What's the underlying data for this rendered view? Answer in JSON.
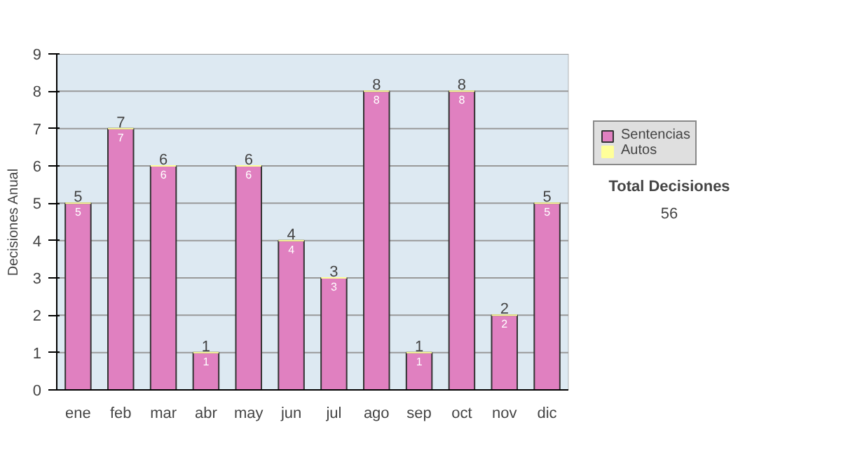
{
  "chart_data": {
    "type": "bar",
    "stacked": true,
    "ylabel": "Decisiones Anual",
    "categories": [
      "ene",
      "feb",
      "mar",
      "abr",
      "may",
      "jun",
      "jul",
      "ago",
      "sep",
      "oct",
      "nov",
      "dic"
    ],
    "series": [
      {
        "name": "Sentencias",
        "color": "#e080c0",
        "values": [
          5,
          7,
          6,
          1,
          6,
          4,
          3,
          8,
          1,
          8,
          2,
          5
        ],
        "value_labels": [
          "5",
          "7",
          "6",
          "1",
          "6",
          "4",
          "3",
          "8",
          "1",
          "8",
          "2",
          "5"
        ]
      },
      {
        "name": "Autos",
        "color": "#ffff99",
        "values": [
          0,
          0,
          0,
          0,
          0,
          0,
          0,
          0,
          0,
          0,
          0,
          0
        ],
        "value_labels": [
          null,
          null,
          null,
          null,
          null,
          null,
          null,
          null,
          null,
          null,
          null,
          null
        ]
      }
    ],
    "data_labels": true,
    "totals": [
      "5",
      "7",
      "6",
      "1",
      "6",
      "4",
      "3",
      "8",
      "1",
      "8",
      "2",
      "5"
    ],
    "ylim": [
      0,
      9
    ],
    "yticks": [
      0,
      1,
      2,
      3,
      4,
      5,
      6,
      7,
      8,
      9
    ],
    "grid": "y",
    "legend": "right",
    "annotations": [
      "Total Decisiones",
      "56"
    ]
  }
}
